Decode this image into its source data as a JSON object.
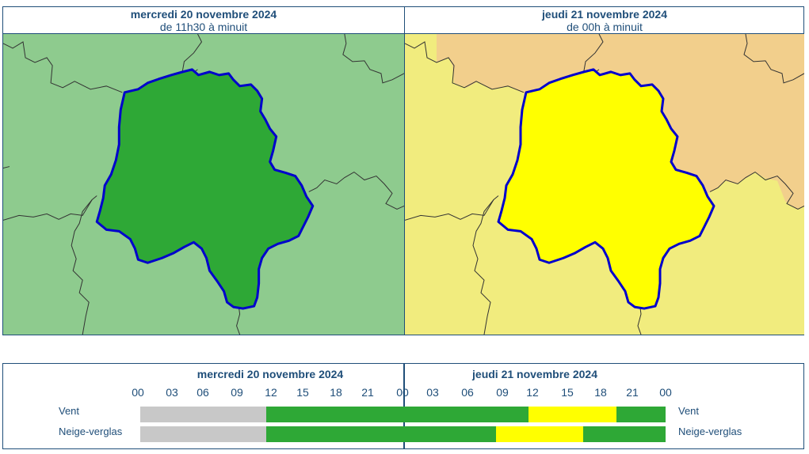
{
  "maps": {
    "left": {
      "date": "mercredi 20 novembre 2024",
      "period": "de 11h30 à minuit",
      "color": "#2ea836",
      "bg": "#8ecb8e"
    },
    "right": {
      "date": "jeudi 21 novembre 2024",
      "period": "de 00h à minuit",
      "color": "#ffff00",
      "bg": "#f1ec7e",
      "bg_north": "#f2cf8c"
    }
  },
  "timeline": {
    "day1": "mercredi 20 novembre 2024",
    "day2": "jeudi 21 novembre 2024",
    "hours": [
      "00",
      "03",
      "06",
      "09",
      "12",
      "15",
      "18",
      "21",
      "00",
      "03",
      "06",
      "09",
      "12",
      "15",
      "18",
      "21",
      "00"
    ],
    "rows": [
      {
        "label": "Vent",
        "segments": [
          {
            "from": 0,
            "to": 11.5,
            "color": "#c8c8c8"
          },
          {
            "from": 11.5,
            "to": 35.5,
            "color": "#2ea836"
          },
          {
            "from": 35.5,
            "to": 43.5,
            "color": "#ffff00"
          },
          {
            "from": 43.5,
            "to": 48,
            "color": "#2ea836"
          }
        ]
      },
      {
        "label": "Neige-verglas",
        "segments": [
          {
            "from": 0,
            "to": 11.5,
            "color": "#c8c8c8"
          },
          {
            "from": 11.5,
            "to": 32.5,
            "color": "#2ea836"
          },
          {
            "from": 32.5,
            "to": 40.5,
            "color": "#ffff00"
          },
          {
            "from": 40.5,
            "to": 48,
            "color": "#2ea836"
          }
        ]
      }
    ]
  },
  "colors": {
    "border": "#1f4e79",
    "boundary": "#333333",
    "dept_border": "#0000cc"
  }
}
